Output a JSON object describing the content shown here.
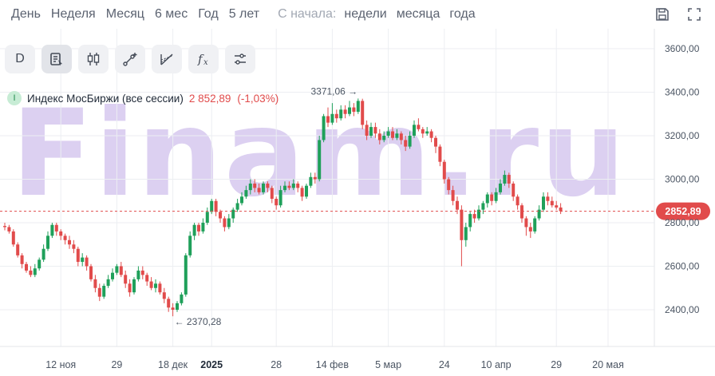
{
  "periods": {
    "items": [
      "День",
      "Неделя",
      "Месяц",
      "6 мес",
      "Год",
      "5 лет"
    ],
    "since_label": "С начала:",
    "since_items": [
      "недели",
      "месяца",
      "года"
    ]
  },
  "toolbar": {
    "interval_label": "D",
    "icons": [
      "chart-type-icon",
      "candlestick-icon",
      "draw-line-icon",
      "fibonacci-icon",
      "function-icon",
      "settings-sliders-icon"
    ]
  },
  "legend": {
    "name": "Индекс МосБиржи (все сессии)",
    "price": "2 852,89",
    "change": "(-1,03%)",
    "badge": "I"
  },
  "watermark": "Finam.ru",
  "colors": {
    "up": "#1fa05a",
    "down": "#e14b4b",
    "price_line": "#e14b4b",
    "watermark": "#d6c8ef"
  },
  "chart_data": {
    "type": "candlestick",
    "title": "Индекс МосБиржи (все сессии)",
    "last_price": 2852.89,
    "last_price_label": "2852,89",
    "ylim": [
      2280,
      3680
    ],
    "y_ticks": [
      2400,
      2600,
      2800,
      3000,
      3200,
      3400,
      3600
    ],
    "y_tick_labels": [
      "2400,00",
      "2600,00",
      "2800,00",
      "3000,00",
      "3200,00",
      "3400,00",
      "3600,00"
    ],
    "x_labels": [
      {
        "label": "12 ноя",
        "bold": false,
        "index": 13
      },
      {
        "label": "29",
        "bold": false,
        "index": 26
      },
      {
        "label": "18 дек",
        "bold": false,
        "index": 39
      },
      {
        "label": "2025",
        "bold": true,
        "index": 48
      },
      {
        "label": "28",
        "bold": false,
        "index": 63
      },
      {
        "label": "14 фев",
        "bold": false,
        "index": 76
      },
      {
        "label": "5 мар",
        "bold": false,
        "index": 89
      },
      {
        "label": "24",
        "bold": false,
        "index": 102
      },
      {
        "label": "10 апр",
        "bold": false,
        "index": 114
      },
      {
        "label": "29",
        "bold": false,
        "index": 128
      },
      {
        "label": "20 мая",
        "bold": false,
        "index": 140
      }
    ],
    "annotations": [
      {
        "label": "3371,06",
        "value": 3371.06,
        "index": 83
      },
      {
        "label": "2370,28",
        "value": 2370.28,
        "index": 39
      }
    ],
    "candles": [
      [
        2785,
        2780,
        2800,
        2765
      ],
      [
        2780,
        2760,
        2790,
        2750
      ],
      [
        2760,
        2700,
        2770,
        2690
      ],
      [
        2700,
        2650,
        2710,
        2640
      ],
      [
        2650,
        2610,
        2660,
        2590
      ],
      [
        2610,
        2580,
        2620,
        2570
      ],
      [
        2580,
        2560,
        2600,
        2550
      ],
      [
        2560,
        2590,
        2610,
        2550
      ],
      [
        2590,
        2630,
        2640,
        2580
      ],
      [
        2630,
        2680,
        2700,
        2620
      ],
      [
        2680,
        2740,
        2760,
        2670
      ],
      [
        2740,
        2790,
        2800,
        2730
      ],
      [
        2790,
        2760,
        2800,
        2740
      ],
      [
        2760,
        2740,
        2770,
        2720
      ],
      [
        2740,
        2720,
        2750,
        2700
      ],
      [
        2720,
        2700,
        2740,
        2680
      ],
      [
        2700,
        2680,
        2720,
        2660
      ],
      [
        2680,
        2620,
        2690,
        2600
      ],
      [
        2620,
        2640,
        2660,
        2600
      ],
      [
        2640,
        2600,
        2650,
        2580
      ],
      [
        2600,
        2540,
        2610,
        2530
      ],
      [
        2540,
        2500,
        2560,
        2480
      ],
      [
        2500,
        2460,
        2520,
        2440
      ],
      [
        2460,
        2510,
        2520,
        2450
      ],
      [
        2510,
        2540,
        2560,
        2500
      ],
      [
        2540,
        2570,
        2590,
        2530
      ],
      [
        2570,
        2600,
        2610,
        2560
      ],
      [
        2600,
        2560,
        2620,
        2550
      ],
      [
        2560,
        2520,
        2580,
        2500
      ],
      [
        2520,
        2480,
        2540,
        2460
      ],
      [
        2480,
        2540,
        2550,
        2470
      ],
      [
        2540,
        2580,
        2600,
        2530
      ],
      [
        2580,
        2560,
        2600,
        2540
      ],
      [
        2560,
        2530,
        2570,
        2510
      ],
      [
        2530,
        2500,
        2550,
        2490
      ],
      [
        2500,
        2520,
        2540,
        2480
      ],
      [
        2520,
        2480,
        2530,
        2470
      ],
      [
        2480,
        2450,
        2500,
        2430
      ],
      [
        2450,
        2410,
        2460,
        2390
      ],
      [
        2410,
        2400,
        2430,
        2370
      ],
      [
        2400,
        2430,
        2440,
        2390
      ],
      [
        2430,
        2470,
        2480,
        2420
      ],
      [
        2470,
        2650,
        2660,
        2460
      ],
      [
        2650,
        2740,
        2760,
        2640
      ],
      [
        2740,
        2790,
        2800,
        2720
      ],
      [
        2790,
        2760,
        2800,
        2740
      ],
      [
        2760,
        2800,
        2820,
        2750
      ],
      [
        2800,
        2850,
        2870,
        2790
      ],
      [
        2850,
        2900,
        2910,
        2840
      ],
      [
        2900,
        2850,
        2910,
        2830
      ],
      [
        2850,
        2820,
        2860,
        2800
      ],
      [
        2820,
        2780,
        2830,
        2760
      ],
      [
        2780,
        2820,
        2840,
        2770
      ],
      [
        2820,
        2860,
        2870,
        2800
      ],
      [
        2860,
        2890,
        2910,
        2850
      ],
      [
        2890,
        2920,
        2940,
        2880
      ],
      [
        2920,
        2950,
        2970,
        2910
      ],
      [
        2950,
        2980,
        3000,
        2930
      ],
      [
        2980,
        2960,
        3000,
        2940
      ],
      [
        2960,
        2940,
        2980,
        2930
      ],
      [
        2940,
        2980,
        2990,
        2930
      ],
      [
        2980,
        2960,
        2990,
        2940
      ],
      [
        2960,
        2910,
        2970,
        2890
      ],
      [
        2910,
        2880,
        2920,
        2860
      ],
      [
        2880,
        2950,
        2970,
        2870
      ],
      [
        2950,
        2970,
        2990,
        2940
      ],
      [
        2970,
        2960,
        2990,
        2950
      ],
      [
        2960,
        2980,
        3000,
        2950
      ],
      [
        2980,
        2960,
        2990,
        2940
      ],
      [
        2960,
        2920,
        2970,
        2900
      ],
      [
        2920,
        2970,
        2980,
        2910
      ],
      [
        2970,
        3010,
        3030,
        2960
      ],
      [
        3010,
        3000,
        3030,
        2980
      ],
      [
        3000,
        3180,
        3200,
        2990
      ],
      [
        3180,
        3290,
        3300,
        3170
      ],
      [
        3290,
        3260,
        3330,
        3240
      ],
      [
        3260,
        3300,
        3350,
        3250
      ],
      [
        3300,
        3280,
        3320,
        3260
      ],
      [
        3280,
        3320,
        3340,
        3270
      ],
      [
        3320,
        3300,
        3340,
        3280
      ],
      [
        3300,
        3330,
        3360,
        3290
      ],
      [
        3330,
        3310,
        3350,
        3290
      ],
      [
        3310,
        3360,
        3371,
        3300
      ],
      [
        3360,
        3250,
        3370,
        3230
      ],
      [
        3250,
        3200,
        3270,
        3180
      ],
      [
        3200,
        3240,
        3260,
        3190
      ],
      [
        3240,
        3210,
        3260,
        3190
      ],
      [
        3210,
        3180,
        3230,
        3160
      ],
      [
        3180,
        3200,
        3220,
        3170
      ],
      [
        3200,
        3220,
        3240,
        3190
      ],
      [
        3220,
        3190,
        3240,
        3180
      ],
      [
        3190,
        3210,
        3230,
        3180
      ],
      [
        3210,
        3180,
        3220,
        3160
      ],
      [
        3180,
        3150,
        3200,
        3130
      ],
      [
        3150,
        3200,
        3220,
        3140
      ],
      [
        3200,
        3250,
        3270,
        3190
      ],
      [
        3250,
        3230,
        3280,
        3220
      ],
      [
        3230,
        3210,
        3240,
        3190
      ],
      [
        3210,
        3220,
        3240,
        3200
      ],
      [
        3220,
        3190,
        3230,
        3170
      ],
      [
        3190,
        3150,
        3200,
        3120
      ],
      [
        3150,
        3080,
        3160,
        3060
      ],
      [
        3080,
        3000,
        3090,
        2980
      ],
      [
        3000,
        2950,
        3010,
        2930
      ],
      [
        2950,
        2900,
        2970,
        2880
      ],
      [
        2900,
        2860,
        2920,
        2840
      ],
      [
        2860,
        2720,
        2880,
        2600
      ],
      [
        2720,
        2780,
        2800,
        2690
      ],
      [
        2780,
        2840,
        2850,
        2760
      ],
      [
        2840,
        2820,
        2860,
        2800
      ],
      [
        2820,
        2860,
        2880,
        2810
      ],
      [
        2860,
        2890,
        2900,
        2840
      ],
      [
        2890,
        2930,
        2940,
        2870
      ],
      [
        2930,
        2900,
        2940,
        2880
      ],
      [
        2900,
        2940,
        2960,
        2890
      ],
      [
        2940,
        2980,
        3000,
        2930
      ],
      [
        2980,
        3020,
        3040,
        2970
      ],
      [
        3020,
        2980,
        3030,
        2960
      ],
      [
        2980,
        2920,
        2990,
        2900
      ],
      [
        2920,
        2880,
        2930,
        2860
      ],
      [
        2880,
        2820,
        2890,
        2800
      ],
      [
        2820,
        2780,
        2830,
        2740
      ],
      [
        2780,
        2760,
        2800,
        2730
      ],
      [
        2760,
        2820,
        2830,
        2750
      ],
      [
        2820,
        2860,
        2880,
        2810
      ],
      [
        2860,
        2920,
        2940,
        2850
      ],
      [
        2920,
        2900,
        2940,
        2880
      ],
      [
        2900,
        2880,
        2920,
        2870
      ],
      [
        2880,
        2870,
        2900,
        2860
      ],
      [
        2870,
        2853,
        2890,
        2840
      ]
    ]
  }
}
